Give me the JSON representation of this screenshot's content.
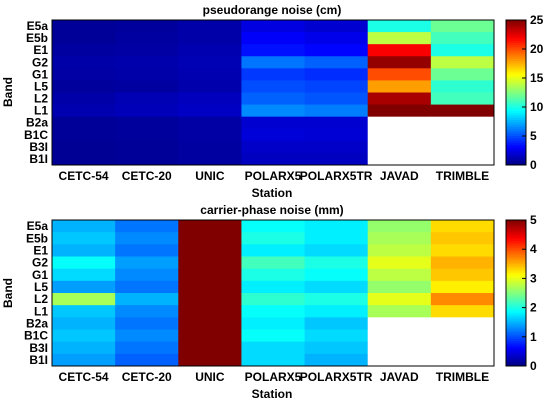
{
  "chart_data": [
    {
      "type": "heatmap",
      "title": "pseudorange noise (cm)",
      "xlabel": "Station",
      "ylabel": "Band",
      "x_categories": [
        "CETC-54",
        "CETC-20",
        "UNIC",
        "POLARX5",
        "POLARX5TR",
        "JAVAD",
        "TRIMBLE"
      ],
      "y_categories": [
        "E5a",
        "E5b",
        "E1",
        "G2",
        "G1",
        "L5",
        "L2",
        "L1",
        "B2a",
        "B1C",
        "B3I",
        "B1I"
      ],
      "colorbar": {
        "min": 0,
        "max": 25,
        "ticks": [
          0,
          5,
          10,
          15,
          20,
          25
        ],
        "colormap": "jet"
      },
      "values": [
        [
          0.6,
          0.7,
          1.0,
          2.4,
          2.0,
          10.0,
          12.0
        ],
        [
          0.6,
          0.8,
          1.0,
          3.0,
          2.6,
          14.0,
          11.0
        ],
        [
          0.8,
          0.9,
          1.2,
          3.5,
          3.2,
          22.0,
          10.0
        ],
        [
          1.0,
          1.1,
          1.3,
          6.0,
          5.5,
          24.5,
          14.0
        ],
        [
          0.9,
          1.0,
          1.2,
          4.5,
          4.2,
          20.0,
          12.0
        ],
        [
          0.7,
          0.8,
          1.1,
          5.0,
          4.8,
          18.0,
          10.5
        ],
        [
          1.0,
          1.3,
          1.5,
          5.5,
          5.2,
          24.0,
          11.0
        ],
        [
          1.2,
          1.4,
          1.7,
          6.5,
          6.2,
          25.0,
          25.0
        ],
        [
          0.6,
          0.7,
          0.9,
          2.0,
          2.0,
          null,
          null
        ],
        [
          0.6,
          0.7,
          0.9,
          2.2,
          2.1,
          null,
          null
        ],
        [
          0.5,
          0.6,
          0.8,
          1.8,
          1.8,
          null,
          null
        ],
        [
          0.5,
          0.6,
          0.8,
          1.6,
          1.6,
          null,
          null
        ]
      ]
    },
    {
      "type": "heatmap",
      "title": "carrier-phase noise (mm)",
      "xlabel": "Station",
      "ylabel": "Band",
      "x_categories": [
        "CETC-54",
        "CETC-20",
        "UNIC",
        "POLARX5",
        "POLARX5TR",
        "JAVAD",
        "TRIMBLE"
      ],
      "y_categories": [
        "E5a",
        "E5b",
        "E1",
        "G2",
        "G1",
        "L5",
        "L2",
        "L1",
        "B2a",
        "B1C",
        "B3I",
        "B1I"
      ],
      "colorbar": {
        "min": 0,
        "max": 5,
        "ticks": [
          0,
          1,
          2,
          3,
          4,
          5
        ],
        "colormap": "jet"
      },
      "values": [
        [
          1.5,
          1.2,
          5.0,
          1.9,
          1.8,
          2.6,
          3.3
        ],
        [
          1.6,
          1.3,
          5.0,
          2.0,
          1.8,
          2.7,
          3.4
        ],
        [
          1.5,
          1.2,
          5.0,
          1.8,
          1.7,
          2.8,
          3.3
        ],
        [
          1.9,
          1.4,
          5.0,
          2.2,
          2.0,
          3.0,
          3.5
        ],
        [
          1.7,
          1.3,
          5.0,
          2.0,
          1.9,
          2.8,
          3.4
        ],
        [
          1.4,
          1.2,
          5.0,
          1.8,
          1.7,
          2.6,
          3.2
        ],
        [
          2.7,
          1.5,
          5.0,
          2.1,
          2.0,
          3.0,
          3.7
        ],
        [
          1.6,
          1.3,
          5.0,
          1.9,
          1.8,
          2.7,
          3.3
        ],
        [
          1.5,
          1.2,
          5.0,
          1.8,
          1.6,
          null,
          null
        ],
        [
          1.6,
          1.3,
          5.0,
          1.9,
          1.7,
          null,
          null
        ],
        [
          1.5,
          1.2,
          5.0,
          1.7,
          1.6,
          null,
          null
        ],
        [
          1.4,
          1.1,
          5.0,
          1.7,
          1.5,
          null,
          null
        ]
      ]
    }
  ]
}
